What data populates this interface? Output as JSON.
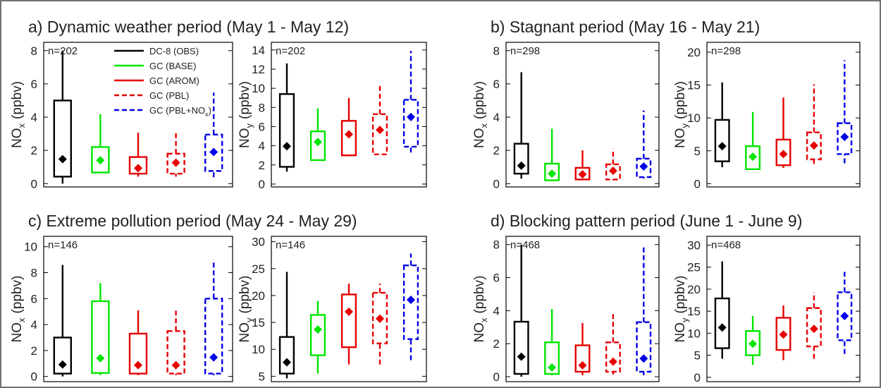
{
  "chart_data": [
    {
      "type": "box",
      "title": "a) Dynamic weather period (May 1 - May 12)",
      "annotation": "n=202",
      "ylabel": "NO",
      "ylabel_sub": "x",
      "ylabel_unit": "(ppbv)",
      "ylim": [
        -0.2,
        8.5
      ],
      "yticks": [
        0,
        2,
        4,
        6,
        8
      ],
      "series": [
        {
          "name": "DC-8 (OBS)",
          "color": "#000000",
          "dashed": false,
          "whislo": 0,
          "q1": 0.42,
          "mean": 1.47,
          "q3": 5.0,
          "whishi": 8.0
        },
        {
          "name": "GC (BASE)",
          "color": "#00e600",
          "dashed": false,
          "whislo": 0.63,
          "q1": 0.67,
          "mean": 1.4,
          "q3": 2.2,
          "whishi": 4.17
        },
        {
          "name": "GC (AROM)",
          "color": "#e60000",
          "dashed": false,
          "whislo": 0.42,
          "q1": 0.6,
          "mean": 0.93,
          "q3": 1.6,
          "whishi": 3.07
        },
        {
          "name": "GC (PBL)",
          "color": "#e60000",
          "dashed": true,
          "whislo": 0.42,
          "q1": 0.6,
          "mean": 1.26,
          "q3": 1.8,
          "whishi": 3.07
        },
        {
          "name": "GC (PBL+NO",
          "name_sub": "x",
          "name_end": ")",
          "color": "#0000e6",
          "dashed": true,
          "whislo": 0.38,
          "q1": 0.76,
          "mean": 1.9,
          "q3": 2.95,
          "whishi": 5.47
        }
      ]
    },
    {
      "type": "box",
      "annotation": "n=202",
      "ylabel": "NO",
      "ylabel_sub": "y",
      "ylabel_unit": "(ppbv)",
      "ylim": [
        -0.3,
        14.8
      ],
      "yticks": [
        0,
        2,
        4,
        6,
        8,
        10,
        12,
        14
      ],
      "series": [
        {
          "color": "#000000",
          "dashed": false,
          "whislo": 1.3,
          "q1": 1.8,
          "mean": 3.95,
          "q3": 9.4,
          "whishi": 12.6
        },
        {
          "color": "#00e600",
          "dashed": false,
          "whislo": 2.5,
          "q1": 2.5,
          "mean": 4.4,
          "q3": 5.5,
          "whishi": 7.9
        },
        {
          "color": "#e60000",
          "dashed": false,
          "whislo": 3.0,
          "q1": 3.0,
          "mean": 5.2,
          "q3": 6.6,
          "whishi": 9.0
        },
        {
          "color": "#e60000",
          "dashed": true,
          "whislo": 3.1,
          "q1": 3.1,
          "mean": 5.66,
          "q3": 7.3,
          "whishi": 10.4
        },
        {
          "color": "#0000e6",
          "dashed": true,
          "whislo": 3.3,
          "q1": 3.9,
          "mean": 7.0,
          "q3": 8.8,
          "whishi": 13.9
        }
      ]
    },
    {
      "type": "box",
      "title": "b) Stagnant period (May 16 - May 21)",
      "annotation": "n=298",
      "ylabel": "NO",
      "ylabel_sub": "x",
      "ylabel_unit": "(ppbv)",
      "ylim": [
        -0.2,
        8.5
      ],
      "yticks": [
        0,
        2,
        4,
        6,
        8
      ],
      "series": [
        {
          "color": "#000000",
          "dashed": false,
          "whislo": 0.3,
          "q1": 0.6,
          "mean": 1.08,
          "q3": 2.4,
          "whishi": 6.7
        },
        {
          "color": "#00e600",
          "dashed": false,
          "whislo": 0.2,
          "q1": 0.2,
          "mean": 0.6,
          "q3": 1.2,
          "whishi": 3.3
        },
        {
          "color": "#e60000",
          "dashed": false,
          "whislo": 0.2,
          "q1": 0.25,
          "mean": 0.56,
          "q3": 0.95,
          "whishi": 2.0
        },
        {
          "color": "#e60000",
          "dashed": true,
          "whislo": 0.2,
          "q1": 0.25,
          "mean": 0.77,
          "q3": 1.16,
          "whishi": 2.1
        },
        {
          "color": "#0000e6",
          "dashed": true,
          "whislo": 0.3,
          "q1": 0.39,
          "mean": 1.03,
          "q3": 1.5,
          "whishi": 4.4
        }
      ]
    },
    {
      "type": "box",
      "annotation": "n=298",
      "ylabel": "NO",
      "ylabel_sub": "y",
      "ylabel_unit": "(ppbv)",
      "ylim": [
        -0.5,
        21.5
      ],
      "yticks": [
        0,
        5,
        10,
        15,
        20
      ],
      "series": [
        {
          "color": "#000000",
          "dashed": false,
          "whislo": 2.5,
          "q1": 3.4,
          "mean": 5.7,
          "q3": 9.7,
          "whishi": 15.4
        },
        {
          "color": "#00e600",
          "dashed": false,
          "whislo": 2.2,
          "q1": 2.2,
          "mean": 4.1,
          "q3": 5.7,
          "whishi": 10.9
        },
        {
          "color": "#e60000",
          "dashed": false,
          "whislo": 2.4,
          "q1": 2.8,
          "mean": 4.5,
          "q3": 6.7,
          "whishi": 13.1
        },
        {
          "color": "#e60000",
          "dashed": true,
          "whislo": 3.0,
          "q1": 3.7,
          "mean": 5.8,
          "q3": 7.8,
          "whishi": 15.1
        },
        {
          "color": "#0000e6",
          "dashed": true,
          "whislo": 3.1,
          "q1": 4.5,
          "mean": 7.1,
          "q3": 9.2,
          "whishi": 18.8
        }
      ]
    },
    {
      "type": "box",
      "title": "c) Extreme pollution period (May 24 - May 29)",
      "annotation": "n=146",
      "ylabel": "NO",
      "ylabel_sub": "x",
      "ylabel_unit": "(ppbv)",
      "ylim": [
        -0.4,
        10.8
      ],
      "yticks": [
        0,
        2,
        4,
        6,
        8,
        10
      ],
      "series": [
        {
          "color": "#000000",
          "dashed": false,
          "whislo": 0,
          "q1": 0.22,
          "mean": 0.92,
          "q3": 3.0,
          "whishi": 8.6
        },
        {
          "color": "#00e600",
          "dashed": false,
          "whislo": 0.1,
          "q1": 0.27,
          "mean": 1.41,
          "q3": 5.8,
          "whishi": 7.2
        },
        {
          "color": "#e60000",
          "dashed": false,
          "whislo": 0.1,
          "q1": 0.22,
          "mean": 0.87,
          "q3": 3.3,
          "whishi": 5.1
        },
        {
          "color": "#e60000",
          "dashed": true,
          "whislo": 0.1,
          "q1": 0.22,
          "mean": 0.87,
          "q3": 3.5,
          "whishi": 5.3
        },
        {
          "color": "#0000e6",
          "dashed": true,
          "whislo": 0.1,
          "q1": 0.22,
          "mean": 1.47,
          "q3": 6.0,
          "whishi": 9.0
        }
      ]
    },
    {
      "type": "box",
      "annotation": "n=146",
      "ylabel": "NO",
      "ylabel_sub": "y",
      "ylabel_unit": "(ppbv)",
      "ylim": [
        4,
        31
      ],
      "yticks": [
        5,
        10,
        15,
        20,
        25,
        30
      ],
      "series": [
        {
          "color": "#000000",
          "dashed": false,
          "whislo": 4.6,
          "q1": 5.5,
          "mean": 7.6,
          "q3": 12.3,
          "whishi": 24.4
        },
        {
          "color": "#00e600",
          "dashed": false,
          "whislo": 5.5,
          "q1": 8.9,
          "mean": 13.7,
          "q3": 16.4,
          "whishi": 19.0
        },
        {
          "color": "#e60000",
          "dashed": false,
          "whislo": 7.2,
          "q1": 10.4,
          "mean": 17.0,
          "q3": 20.2,
          "whishi": 22.2
        },
        {
          "color": "#e60000",
          "dashed": true,
          "whislo": 7.2,
          "q1": 11.1,
          "mean": 15.7,
          "q3": 20.5,
          "whishi": 22.2
        },
        {
          "color": "#0000e6",
          "dashed": true,
          "whislo": 8.0,
          "q1": 11.9,
          "mean": 19.2,
          "q3": 25.6,
          "whishi": 27.8
        }
      ]
    },
    {
      "type": "box",
      "title": "d) Blocking pattern period (June 1 - June 9)",
      "annotation": "n=468",
      "ylabel": "NO",
      "ylabel_sub": "x",
      "ylabel_unit": "(ppbv)",
      "ylim": [
        -0.3,
        8.5
      ],
      "yticks": [
        0,
        2,
        4,
        6,
        8
      ],
      "series": [
        {
          "color": "#000000",
          "dashed": false,
          "whislo": 0,
          "q1": 0.17,
          "mean": 1.21,
          "q3": 3.33,
          "whishi": 8.0
        },
        {
          "color": "#00e600",
          "dashed": false,
          "whislo": 0.09,
          "q1": 0.17,
          "mean": 0.56,
          "q3": 2.08,
          "whishi": 4.1
        },
        {
          "color": "#e60000",
          "dashed": false,
          "whislo": 0.09,
          "q1": 0.3,
          "mean": 0.69,
          "q3": 1.9,
          "whishi": 3.25
        },
        {
          "color": "#e60000",
          "dashed": true,
          "whislo": 0.13,
          "q1": 0.3,
          "mean": 0.91,
          "q3": 2.08,
          "whishi": 3.8
        },
        {
          "color": "#0000e6",
          "dashed": true,
          "whislo": 0.09,
          "q1": 0.3,
          "mean": 1.1,
          "q3": 3.3,
          "whishi": 7.9
        }
      ]
    },
    {
      "type": "box",
      "annotation": "n=468",
      "ylabel": "NO",
      "ylabel_sub": "y",
      "ylabel_unit": "(ppbv)",
      "ylim": [
        -1,
        32
      ],
      "yticks": [
        0,
        5,
        10,
        15,
        20,
        25,
        30
      ],
      "series": [
        {
          "color": "#000000",
          "dashed": false,
          "whislo": 4.2,
          "q1": 6.6,
          "mean": 11.3,
          "q3": 17.9,
          "whishi": 26.3
        },
        {
          "color": "#00e600",
          "dashed": false,
          "whislo": 2.8,
          "q1": 5.0,
          "mean": 7.6,
          "q3": 10.5,
          "whishi": 13.9
        },
        {
          "color": "#e60000",
          "dashed": false,
          "whislo": 3.9,
          "q1": 6.2,
          "mean": 9.7,
          "q3": 13.5,
          "whishi": 16.3
        },
        {
          "color": "#e60000",
          "dashed": true,
          "whislo": 4.2,
          "q1": 7.0,
          "mean": 11.0,
          "q3": 15.7,
          "whishi": 19.3
        },
        {
          "color": "#0000e6",
          "dashed": true,
          "whislo": 5.3,
          "q1": 8.4,
          "mean": 13.9,
          "q3": 19.3,
          "whishi": 24.6
        }
      ]
    }
  ]
}
